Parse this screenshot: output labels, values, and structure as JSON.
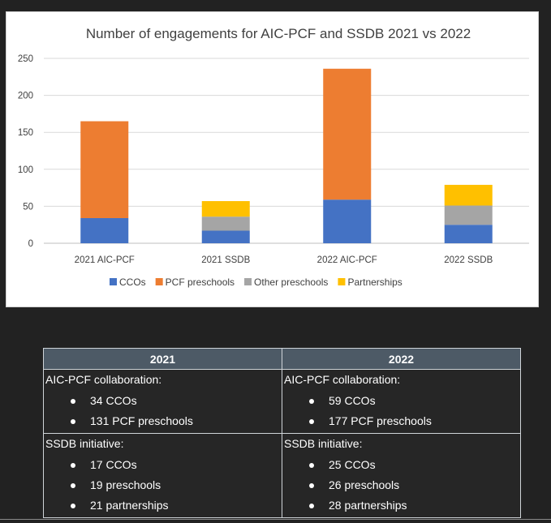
{
  "chart_data": {
    "type": "bar",
    "stacked": true,
    "title": "Number of engagements for AIC-PCF and SSDB 2021 vs 2022",
    "categories": [
      "2021 AIC-PCF",
      "2021 SSDB",
      "2022 AIC-PCF",
      "2022 SSDB"
    ],
    "series": [
      {
        "name": "CCOs",
        "color": "#4472c4",
        "values": [
          34,
          17,
          59,
          25
        ]
      },
      {
        "name": "PCF preschools",
        "color": "#ed7d31",
        "values": [
          131,
          0,
          177,
          0
        ]
      },
      {
        "name": "Other preschools",
        "color": "#a5a5a5",
        "values": [
          0,
          19,
          0,
          26
        ]
      },
      {
        "name": "Partnerships",
        "color": "#ffc000",
        "values": [
          0,
          21,
          0,
          28
        ]
      }
    ],
    "ylim": [
      0,
      250
    ],
    "yticks": [
      "0",
      "50",
      "100",
      "150",
      "200",
      "250"
    ],
    "grid": true,
    "legend_position": "bottom"
  },
  "table": {
    "columns": [
      {
        "header": "2021",
        "sections": [
          {
            "heading": "AIC-PCF collaboration:",
            "items": [
              "34 CCOs",
              "131 PCF preschools"
            ]
          },
          {
            "heading": "SSDB initiative:",
            "items": [
              "17 CCOs",
              "19 preschools",
              "21 partnerships"
            ]
          }
        ]
      },
      {
        "header": "2022",
        "sections": [
          {
            "heading": "AIC-PCF collaboration:",
            "items": [
              "59 CCOs",
              "177 PCF preschools"
            ]
          },
          {
            "heading": "SSDB initiative:",
            "items": [
              "25 CCOs",
              "26 preschools",
              "28 partnerships"
            ]
          }
        ]
      }
    ]
  }
}
